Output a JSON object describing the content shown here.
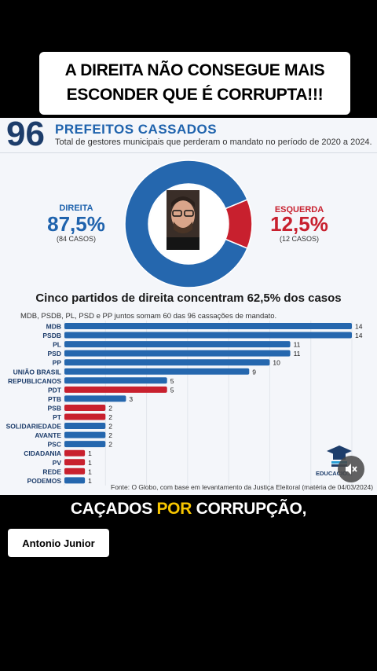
{
  "video_caption": {
    "line1": "A DIREITA NÃO CONSEGUE MAIS",
    "line2": "ESCONDER QUE É CORRUPTA!!!"
  },
  "infographic": {
    "big_number": "96",
    "title": "PREFEITOS CASSADOS",
    "subtitle": "Total de gestores municipais que perderam o mandato no período de 2020 a 2024.",
    "right_side": {
      "label": "DIREITA",
      "percent": "87,5%",
      "cases": "(84 CASOS)"
    },
    "left_side": {
      "label": "ESQUERDA",
      "percent": "12,5%",
      "cases": "(12 CASOS)"
    },
    "section_title": "Cinco partidos de direita concentram 62,5% dos casos",
    "section_subtitle": "MDB, PSDB, PL, PSD e PP juntos somam 60 das 96 cassações de mandato.",
    "source": "Fonte: O Globo, com base em levantamento da Justiça Eleitoral (matéria de 04/03/2024)",
    "logo_text": "EDUCACIO...",
    "colors": {
      "direita": "#2567ae",
      "esquerda": "#c8202e"
    }
  },
  "chart_data": [
    {
      "type": "pie",
      "categories": [
        "DIREITA",
        "ESQUERDA"
      ],
      "values": [
        84,
        12
      ],
      "colors": [
        "#2567ae",
        "#c8202e"
      ]
    },
    {
      "type": "bar",
      "orientation": "horizontal",
      "categories": [
        "MDB",
        "PSDB",
        "PL",
        "PSD",
        "PP",
        "UNIÃO BRASIL",
        "REPUBLICANOS",
        "PDT",
        "PTB",
        "PSB",
        "PT",
        "SOLIDARIEDADE",
        "AVANTE",
        "PSC",
        "CIDADANIA",
        "PV",
        "REDE",
        "PODEMOS"
      ],
      "values": [
        14,
        14,
        11,
        11,
        10,
        9,
        5,
        5,
        3,
        2,
        2,
        2,
        2,
        2,
        1,
        1,
        1,
        1
      ],
      "bar_colors": [
        "#2567ae",
        "#2567ae",
        "#2567ae",
        "#2567ae",
        "#2567ae",
        "#2567ae",
        "#2567ae",
        "#c8202e",
        "#2567ae",
        "#c8202e",
        "#c8202e",
        "#2567ae",
        "#2567ae",
        "#2567ae",
        "#c8202e",
        "#c8202e",
        "#c8202e",
        "#2567ae"
      ],
      "xlim": [
        0,
        14
      ]
    }
  ],
  "subtitle_line": {
    "part1": "CAÇADOS ",
    "highlight": "POR",
    "part2": " CORRUPÇÃO,"
  },
  "author": "Antonio Junior",
  "icons": {
    "mute": "volume-mute-icon"
  }
}
